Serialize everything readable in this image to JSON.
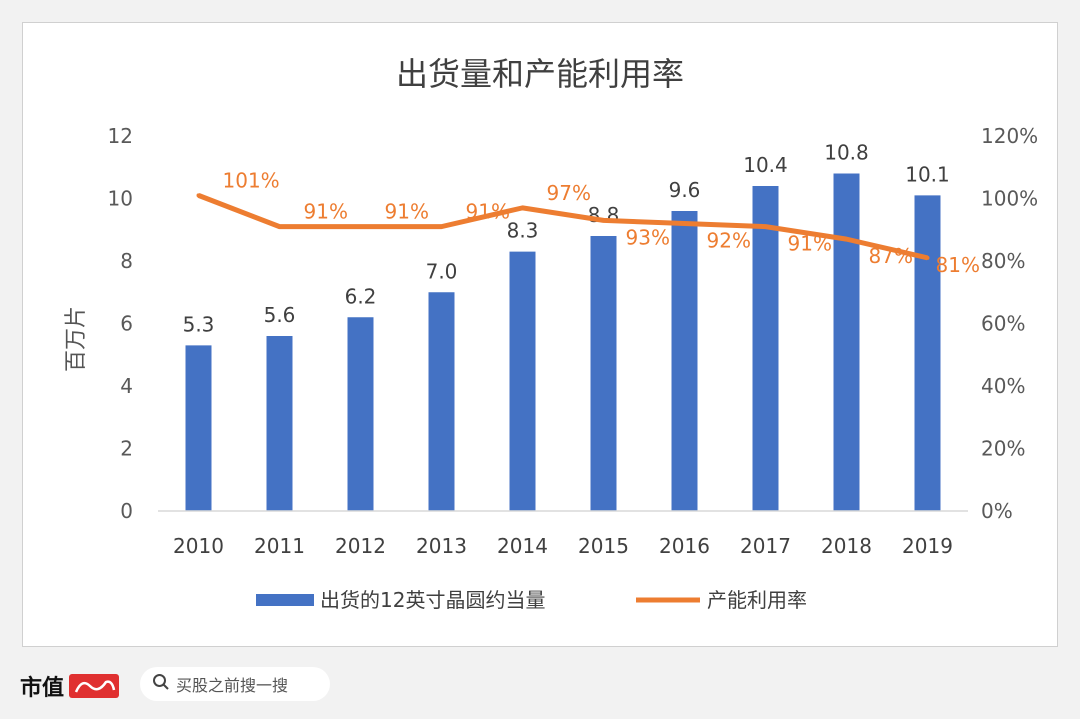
{
  "chart_data": {
    "type": "bar",
    "title": "出货量和产能利用率",
    "ylabel": "百万片",
    "categories": [
      "2010",
      "2011",
      "2012",
      "2013",
      "2014",
      "2015",
      "2016",
      "2017",
      "2018",
      "2019"
    ],
    "ylim": [
      0,
      12
    ],
    "y_ticks": [
      "0",
      "2",
      "4",
      "6",
      "8",
      "10",
      "12"
    ],
    "y2lim": [
      0,
      120
    ],
    "y2_ticks": [
      "0%",
      "20%",
      "40%",
      "60%",
      "80%",
      "100%",
      "120%"
    ],
    "series": [
      {
        "name": "出货的12英寸晶圆约当量",
        "type": "bar",
        "axis": "left",
        "color": "#4472c4",
        "values": [
          5.3,
          5.6,
          6.2,
          7.0,
          8.3,
          8.8,
          9.6,
          10.4,
          10.8,
          10.1
        ],
        "labels": [
          "5.3",
          "5.6",
          "6.2",
          "7.0",
          "8.3",
          "8.8",
          "9.6",
          "10.4",
          "10.8",
          "10.1"
        ]
      },
      {
        "name": "产能利用率",
        "type": "line",
        "axis": "right",
        "color": "#ed7d31",
        "values": [
          101,
          91,
          91,
          91,
          97,
          93,
          92,
          91,
          87,
          81
        ],
        "labels": [
          "101%",
          "91%",
          "91%",
          "91%",
          "97%",
          "93%",
          "92%",
          "91%",
          "87%",
          "81%"
        ]
      }
    ],
    "grid": false,
    "legend": "bottom"
  },
  "footer": {
    "brand": "市值",
    "search_placeholder": "买股之前搜一搜"
  },
  "icons": {
    "search": "search-icon",
    "brand_logo": "brand-logo-icon"
  }
}
